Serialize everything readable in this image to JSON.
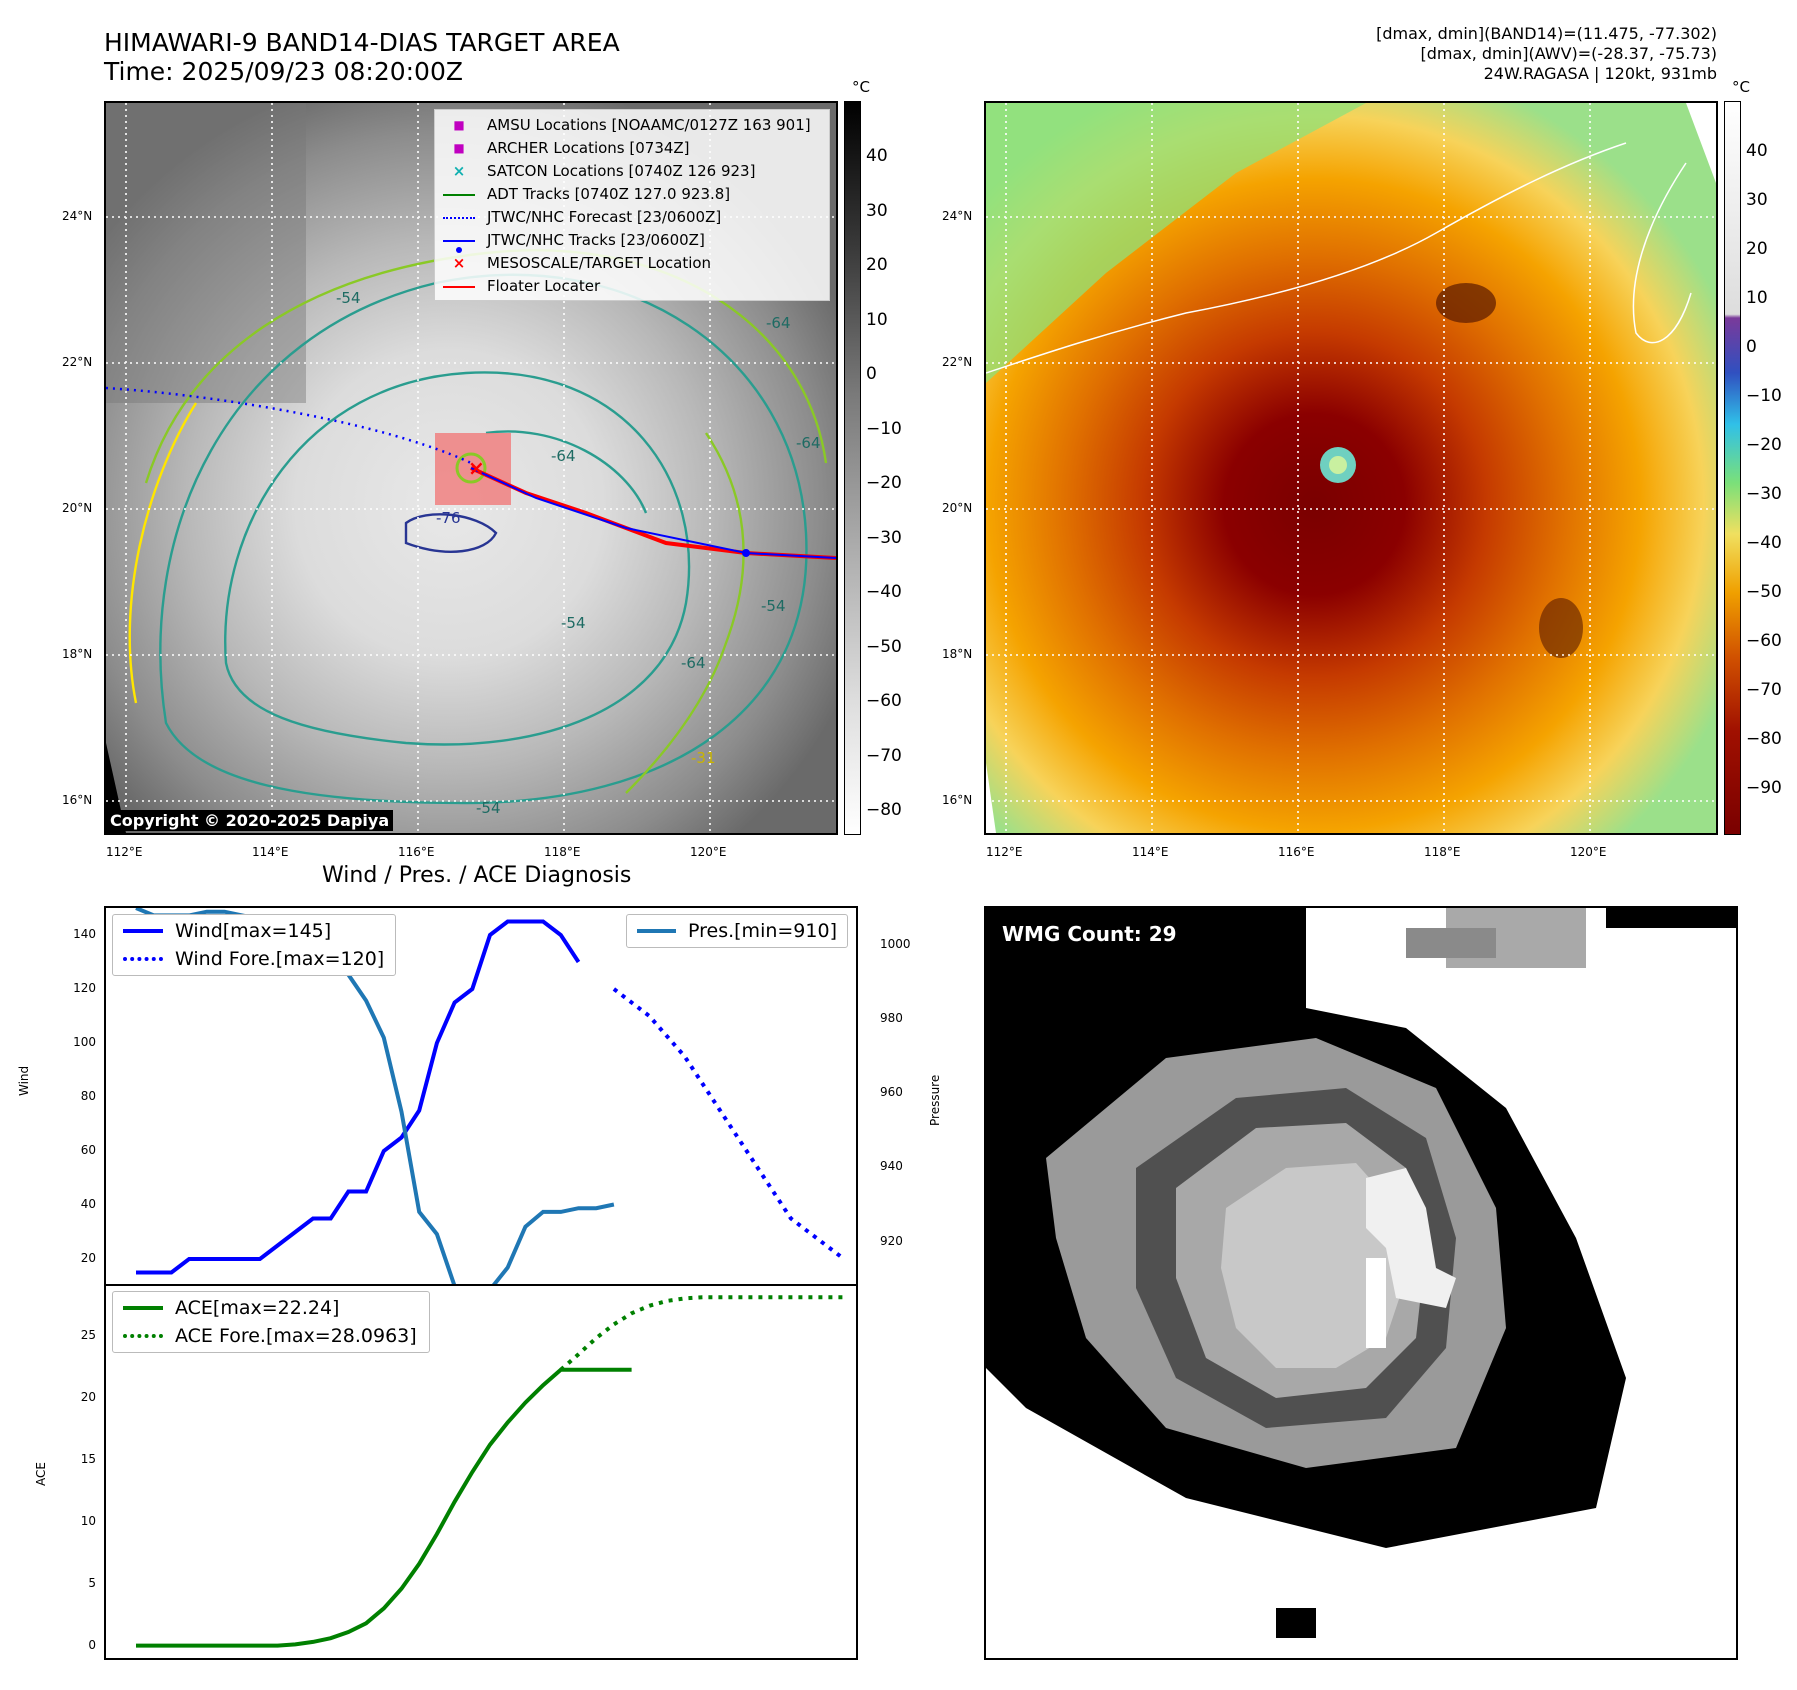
{
  "header": {
    "title_line1": "HIMAWARI-9 BAND14-DIAS TARGET AREA",
    "title_line2": "Time: 2025/09/23 08:20:00Z",
    "info_line1": "[dmax, dmin](BAND14)=(11.475, -77.302)",
    "info_line2": "[dmax, dmin](AWV)=(-28.37, -75.73)",
    "info_line3": "24W.RAGASA | 120kt, 931mb"
  },
  "map_common": {
    "lat_labels": [
      "24°N",
      "22°N",
      "20°N",
      "18°N",
      "16°N"
    ],
    "lon_labels": [
      "112°E",
      "114°E",
      "116°E",
      "118°E",
      "120°E"
    ],
    "colorbar_unit": "°C"
  },
  "ir_map": {
    "colorbar_ticks": [
      "40",
      "30",
      "20",
      "10",
      "0",
      "−10",
      "−20",
      "−30",
      "−40",
      "−50",
      "−60",
      "−70",
      "−80"
    ],
    "copyright": "Copyright © 2020-2025 Dapiya",
    "legend": [
      {
        "label": "AMSU Locations [NOAAMC/0127Z 163 901]",
        "symbol": "square",
        "color": "#c000c0"
      },
      {
        "label": "ARCHER Locations [0734Z]",
        "symbol": "square",
        "color": "#c000c0"
      },
      {
        "label": "SATCON Locations [0740Z 126 923]",
        "symbol": "x",
        "color": "#10b0b0"
      },
      {
        "label": "ADT Tracks [0740Z 127.0 923.8]",
        "symbol": "line",
        "color": "#008000"
      },
      {
        "label": "JTWC/NHC Forecast [23/0600Z]",
        "symbol": "dotted",
        "color": "#0000ff"
      },
      {
        "label": "JTWC/NHC Tracks [23/0600Z]",
        "symbol": "line-dot",
        "color": "#0000ff"
      },
      {
        "label": "MESOSCALE/TARGET Location",
        "symbol": "x",
        "color": "#ff0000"
      },
      {
        "label": "Floater Locater",
        "symbol": "line",
        "color": "#ff0000"
      }
    ],
    "contour_labels": [
      "-76",
      "-64",
      "-64",
      "-54",
      "-54",
      "-64",
      "-54",
      "-31",
      "-54",
      "-64"
    ]
  },
  "color_map": {
    "colorbar_ticks": [
      "40",
      "30",
      "20",
      "10",
      "0",
      "−10",
      "−20",
      "−30",
      "−40",
      "−50",
      "−60",
      "−70",
      "−80",
      "−90"
    ]
  },
  "diagnosis_title": "Wind / Pres. / ACE Diagnosis",
  "wmg_label": "WMG Count: 29",
  "chart_data": [
    {
      "type": "line",
      "title": "Wind / Pres. / ACE Diagnosis",
      "ylabel": "Wind",
      "ylabel_right": "Pressure",
      "ylim": [
        10,
        150
      ],
      "ylim_right": [
        908,
        1010
      ],
      "yticks": [
        20,
        40,
        60,
        80,
        100,
        120,
        140
      ],
      "yticks_right": [
        920,
        940,
        960,
        980,
        1000
      ],
      "x": [
        0,
        1,
        2,
        3,
        4,
        5,
        6,
        7,
        8,
        9,
        10,
        11,
        12,
        13,
        14,
        15,
        16,
        17,
        18,
        19,
        20,
        21,
        22,
        23,
        24,
        25,
        26,
        27,
        28,
        29,
        30,
        31,
        32,
        33,
        34,
        35,
        36,
        37,
        38,
        39,
        40
      ],
      "series": [
        {
          "name": "Wind[max=145]",
          "style": "solid",
          "color": "#0000ff",
          "axis": "left",
          "x": [
            0,
            1,
            2,
            3,
            4,
            5,
            6,
            7,
            8,
            9,
            10,
            11,
            12,
            13,
            14,
            15,
            16,
            17,
            18,
            19,
            20,
            21,
            22,
            23,
            24,
            25
          ],
          "values": [
            15,
            15,
            15,
            20,
            20,
            20,
            20,
            20,
            25,
            30,
            35,
            35,
            45,
            45,
            60,
            65,
            75,
            100,
            115,
            120,
            140,
            145,
            145,
            145,
            140,
            130
          ]
        },
        {
          "name": "Wind Fore.[max=120]",
          "style": "dotted",
          "color": "#0000ff",
          "axis": "left",
          "x": [
            27,
            29,
            31,
            32,
            33,
            35,
            36,
            37,
            38,
            40
          ],
          "values": [
            120,
            110,
            95,
            85,
            75,
            55,
            45,
            35,
            30,
            20
          ]
        },
        {
          "name": "Pres.[min=910]",
          "style": "solid",
          "color": "#1f77b4",
          "axis": "right",
          "x": [
            0,
            1,
            2,
            3,
            4,
            5,
            6,
            7,
            8,
            9,
            10,
            11,
            12,
            13,
            14,
            15,
            16,
            17,
            18,
            19,
            20,
            21,
            22,
            23,
            24,
            25,
            26,
            27
          ],
          "values": [
            1010,
            1008,
            1008,
            1008,
            1009,
            1009,
            1008,
            1007,
            1006,
            1003,
            1000,
            997,
            992,
            985,
            975,
            955,
            928,
            922,
            908,
            907,
            907,
            913,
            924,
            928,
            928,
            929,
            929,
            930
          ]
        }
      ]
    },
    {
      "type": "line",
      "ylabel": "ACE",
      "ylim": [
        -1,
        29
      ],
      "yticks": [
        0,
        5,
        10,
        15,
        20,
        25
      ],
      "series": [
        {
          "name": "ACE[max=22.24]",
          "style": "solid",
          "color": "#008000",
          "x": [
            0,
            2,
            4,
            6,
            8,
            9,
            10,
            11,
            12,
            13,
            14,
            15,
            16,
            17,
            18,
            19,
            20,
            21,
            22,
            23,
            24,
            25,
            26,
            27,
            28
          ],
          "values": [
            0,
            0,
            0,
            0,
            0,
            0.1,
            0.3,
            0.6,
            1.1,
            1.8,
            3.0,
            4.6,
            6.6,
            9.0,
            11.6,
            14.0,
            16.2,
            18.0,
            19.6,
            21.0,
            22.24,
            22.24,
            22.24,
            22.24,
            22.24
          ]
        },
        {
          "name": "ACE Fore.[max=28.0963]",
          "style": "dotted",
          "color": "#008000",
          "x": [
            24,
            25,
            26,
            27,
            28,
            29,
            30,
            31,
            32,
            33,
            34,
            36,
            38,
            40
          ],
          "values": [
            22.24,
            23.5,
            24.8,
            25.9,
            26.8,
            27.4,
            27.8,
            28.0,
            28.09,
            28.09,
            28.0963,
            28.0963,
            28.0963,
            28.0963
          ]
        }
      ]
    }
  ]
}
